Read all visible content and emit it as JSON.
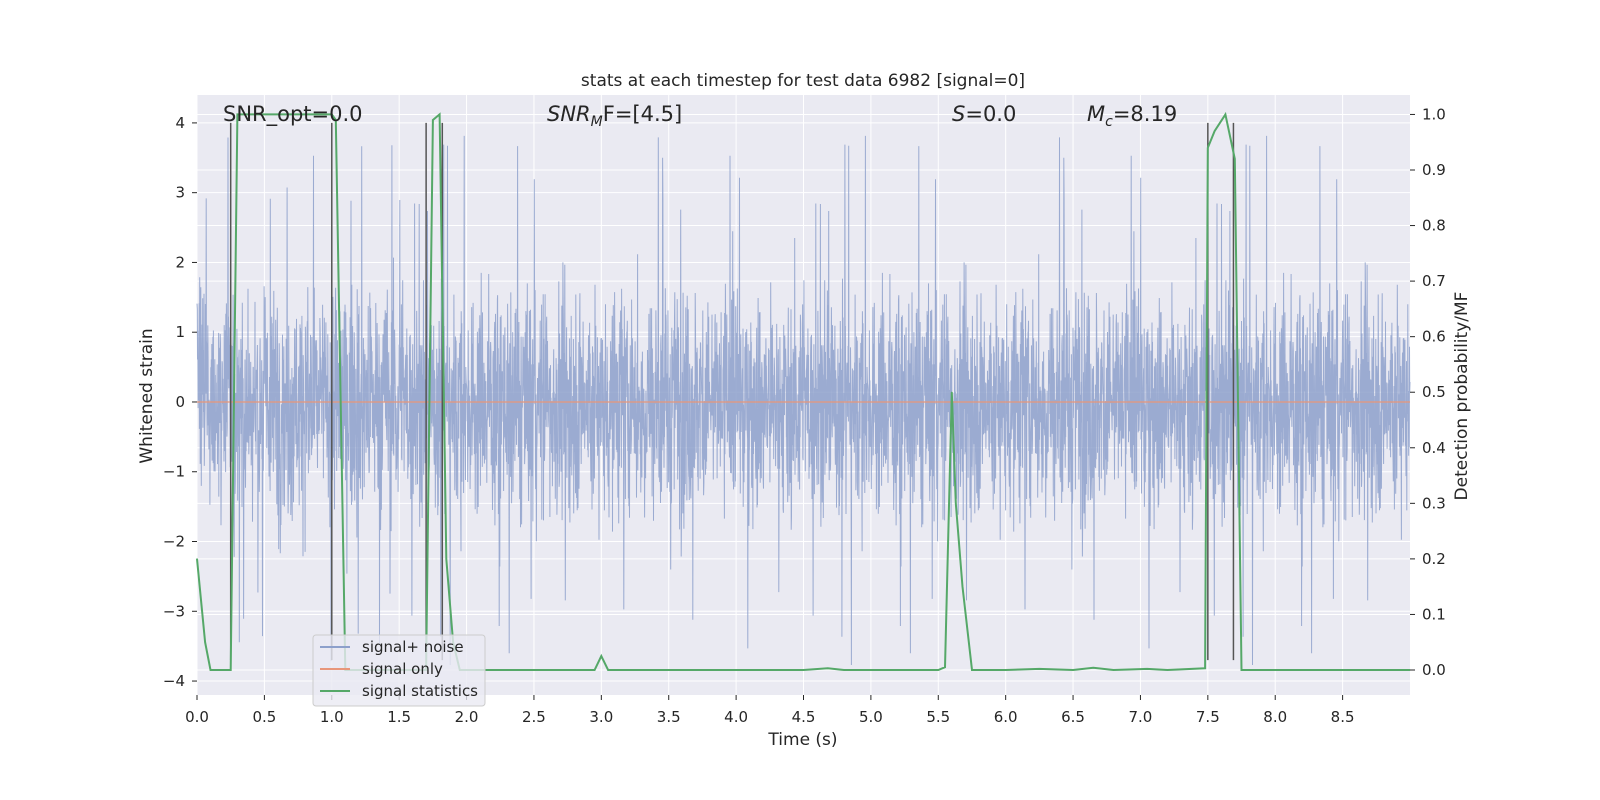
{
  "chart_data": {
    "type": "line",
    "title": "stats at each timestep for test data 6982 [signal=0]",
    "xlabel": "Time (s)",
    "ylabel": "Whitened strain",
    "ylabel_right": "Detection probability/MF",
    "xlim": [
      0,
      9
    ],
    "ylim": [
      -4.2,
      4.4
    ],
    "ylim_right": [
      -0.045,
      1.035
    ],
    "x_ticks": [
      "0.0",
      "0.5",
      "1.0",
      "1.5",
      "2.0",
      "2.5",
      "3.0",
      "3.5",
      "4.0",
      "4.5",
      "5.0",
      "5.5",
      "6.0",
      "6.5",
      "7.0",
      "7.5",
      "8.0",
      "8.5"
    ],
    "y_ticks": [
      "4",
      "3",
      "2",
      "1",
      "0",
      "−1",
      "−2",
      "−3",
      "−4"
    ],
    "y_ticks_right": [
      "1.0",
      "0.9",
      "0.8",
      "0.7",
      "0.6",
      "0.5",
      "0.4",
      "0.3",
      "0.2",
      "0.1",
      "0.0"
    ],
    "grid": true,
    "legend_position": "lower-left",
    "annotations": {
      "snr_opt": "SNR_opt=0.0",
      "snr_mf_main": "SNR",
      "snr_mf_sub": "M",
      "snr_mf_tail": "F=[4.5]",
      "s_main": "S",
      "s_tail": "=0.0",
      "mc_main": "M",
      "mc_sub": "c",
      "mc_tail": "=8.19"
    },
    "series": [
      {
        "name": "signal+ noise",
        "axis": "left",
        "color": "#8da0cb",
        "description_values": "whitened strain noise, amplitude mostly within ±2.2 with spikes to about ±3.9"
      },
      {
        "name": "signal only",
        "axis": "left",
        "color": "#e8967a",
        "x": [
          0,
          9
        ],
        "y": [
          0,
          0
        ]
      },
      {
        "name": "signal statistics",
        "axis": "right",
        "color": "#55a868",
        "x": [
          0,
          0.06,
          0.1,
          0.25,
          0.3,
          1.0,
          1.03,
          1.1,
          1.7,
          1.75,
          1.8,
          1.85,
          1.9,
          1.95,
          2.5,
          2.95,
          3.0,
          3.05,
          3.1,
          3.5,
          4.0,
          4.5,
          4.68,
          4.8,
          5.0,
          5.5,
          5.55,
          5.6,
          5.63,
          5.68,
          5.75,
          6.0,
          6.25,
          6.5,
          6.65,
          6.8,
          7.05,
          7.2,
          7.48,
          7.5,
          7.55,
          7.63,
          7.7,
          7.75,
          8.0,
          8.5,
          9.0
        ],
        "y": [
          0.2,
          0.05,
          0.0,
          0.0,
          1.0,
          1.0,
          0.99,
          0.0,
          0.0,
          0.99,
          1.0,
          0.2,
          0.05,
          0.0,
          0.0,
          0.0,
          0.025,
          0.0,
          0.0,
          0.0,
          0.0,
          0.0,
          0.003,
          0.0,
          0.0,
          0.0,
          0.005,
          0.5,
          0.3,
          0.15,
          0.0,
          0.0,
          0.002,
          0.0,
          0.004,
          0.0,
          0.002,
          0.0,
          0.003,
          0.94,
          0.97,
          1.0,
          0.92,
          0.0,
          0.0,
          0.0,
          0.0
        ]
      }
    ],
    "vertical_markers": [
      0.25,
      1.0,
      1.7,
      1.82,
      7.5,
      7.69
    ]
  }
}
